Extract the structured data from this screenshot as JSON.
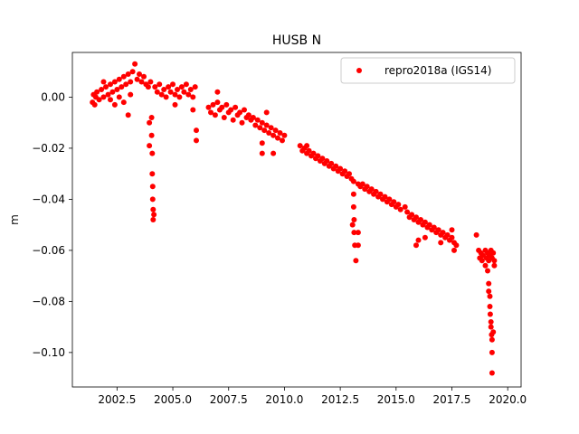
{
  "chart_data": {
    "type": "scatter",
    "title": "HUSB N",
    "xlabel": "",
    "ylabel": "m",
    "xlim": [
      2000.5,
      2020.6
    ],
    "ylim": [
      -0.1135,
      0.0175
    ],
    "xticks": [
      2002.5,
      2005.0,
      2007.5,
      2010.0,
      2012.5,
      2015.0,
      2017.5,
      2020.0
    ],
    "xtick_labels": [
      "2002.5",
      "2005.0",
      "2007.5",
      "2010.0",
      "2012.5",
      "2015.0",
      "2017.5",
      "2020.0"
    ],
    "yticks": [
      0.0,
      -0.02,
      -0.04,
      -0.06,
      -0.08,
      -0.1
    ],
    "ytick_labels": [
      "0.00",
      "−0.02",
      "−0.04",
      "−0.06",
      "−0.08",
      "−0.10"
    ],
    "legend_position": "top-right",
    "grid": false,
    "series": [
      {
        "name": "repro2018a (IGS14)",
        "color": "#ff0000",
        "marker": "circle",
        "points": [
          [
            2001.4,
            -0.002
          ],
          [
            2001.45,
            0.001
          ],
          [
            2001.5,
            -0.003
          ],
          [
            2001.55,
            0.0
          ],
          [
            2001.6,
            0.002
          ],
          [
            2001.7,
            -0.001
          ],
          [
            2001.8,
            0.003
          ],
          [
            2001.9,
            0.0
          ],
          [
            2002.0,
            0.004
          ],
          [
            2002.1,
            0.001
          ],
          [
            2002.2,
            0.005
          ],
          [
            2002.3,
            0.002
          ],
          [
            2002.4,
            0.006
          ],
          [
            2002.5,
            0.003
          ],
          [
            2002.6,
            0.007
          ],
          [
            2002.7,
            0.004
          ],
          [
            2002.8,
            0.008
          ],
          [
            2002.9,
            0.005
          ],
          [
            2003.0,
            0.009
          ],
          [
            2003.1,
            0.006
          ],
          [
            2003.2,
            0.01
          ],
          [
            2003.3,
            0.013
          ],
          [
            2003.4,
            0.007
          ],
          [
            2003.5,
            0.009
          ],
          [
            2003.6,
            0.006
          ],
          [
            2003.7,
            0.008
          ],
          [
            2003.8,
            0.005
          ],
          [
            2003.9,
            0.004
          ],
          [
            2002.8,
            -0.002
          ],
          [
            2003.0,
            -0.007
          ],
          [
            2003.1,
            0.001
          ],
          [
            2002.2,
            -0.001
          ],
          [
            2002.6,
            0.0
          ],
          [
            2001.9,
            0.006
          ],
          [
            2002.4,
            -0.003
          ],
          [
            2004.0,
            0.006
          ],
          [
            2004.05,
            -0.008
          ],
          [
            2004.05,
            -0.015
          ],
          [
            2004.08,
            -0.022
          ],
          [
            2004.08,
            -0.03
          ],
          [
            2004.1,
            -0.035
          ],
          [
            2004.1,
            -0.04
          ],
          [
            2004.12,
            -0.044
          ],
          [
            2004.12,
            -0.048
          ],
          [
            2004.15,
            -0.046
          ],
          [
            2003.95,
            -0.01
          ],
          [
            2003.95,
            -0.019
          ],
          [
            2004.2,
            0.004
          ],
          [
            2004.3,
            0.002
          ],
          [
            2004.4,
            0.005
          ],
          [
            2004.5,
            0.001
          ],
          [
            2004.6,
            0.003
          ],
          [
            2004.7,
            0.0
          ],
          [
            2004.8,
            0.004
          ],
          [
            2004.9,
            0.002
          ],
          [
            2005.0,
            0.005
          ],
          [
            2005.1,
            0.001
          ],
          [
            2005.2,
            0.003
          ],
          [
            2005.3,
            0.0
          ],
          [
            2005.4,
            0.004
          ],
          [
            2005.5,
            0.002
          ],
          [
            2005.6,
            0.005
          ],
          [
            2005.7,
            0.001
          ],
          [
            2005.8,
            0.003
          ],
          [
            2005.9,
            0.0
          ],
          [
            2006.0,
            0.004
          ],
          [
            2006.05,
            -0.013
          ],
          [
            2006.05,
            -0.017
          ],
          [
            2005.1,
            -0.003
          ],
          [
            2005.9,
            -0.005
          ],
          [
            2006.6,
            -0.004
          ],
          [
            2006.7,
            -0.006
          ],
          [
            2006.8,
            -0.003
          ],
          [
            2006.9,
            -0.007
          ],
          [
            2007.0,
            -0.002
          ],
          [
            2007.1,
            -0.005
          ],
          [
            2007.2,
            -0.004
          ],
          [
            2007.3,
            -0.008
          ],
          [
            2007.4,
            -0.003
          ],
          [
            2007.5,
            -0.006
          ],
          [
            2007.6,
            -0.005
          ],
          [
            2007.7,
            -0.009
          ],
          [
            2007.8,
            -0.004
          ],
          [
            2007.9,
            -0.007
          ],
          [
            2008.0,
            -0.006
          ],
          [
            2008.1,
            -0.01
          ],
          [
            2008.2,
            -0.005
          ],
          [
            2008.3,
            -0.008
          ],
          [
            2008.4,
            -0.007
          ],
          [
            2007.0,
            0.002
          ],
          [
            2008.5,
            -0.009
          ],
          [
            2008.6,
            -0.008
          ],
          [
            2008.7,
            -0.011
          ],
          [
            2008.8,
            -0.009
          ],
          [
            2008.9,
            -0.012
          ],
          [
            2009.0,
            -0.01
          ],
          [
            2009.1,
            -0.013
          ],
          [
            2009.2,
            -0.011
          ],
          [
            2009.3,
            -0.014
          ],
          [
            2009.4,
            -0.012
          ],
          [
            2009.5,
            -0.015
          ],
          [
            2009.6,
            -0.013
          ],
          [
            2009.7,
            -0.016
          ],
          [
            2009.8,
            -0.014
          ],
          [
            2009.9,
            -0.017
          ],
          [
            2010.0,
            -0.015
          ],
          [
            2009.0,
            -0.018
          ],
          [
            2009.0,
            -0.022
          ],
          [
            2009.5,
            -0.022
          ],
          [
            2009.2,
            -0.006
          ],
          [
            2010.7,
            -0.019
          ],
          [
            2010.8,
            -0.021
          ],
          [
            2010.9,
            -0.02
          ],
          [
            2011.0,
            -0.022
          ],
          [
            2011.1,
            -0.021
          ],
          [
            2011.2,
            -0.023
          ],
          [
            2011.3,
            -0.022
          ],
          [
            2011.4,
            -0.024
          ],
          [
            2011.5,
            -0.023
          ],
          [
            2011.6,
            -0.025
          ],
          [
            2011.7,
            -0.024
          ],
          [
            2011.8,
            -0.026
          ],
          [
            2011.9,
            -0.025
          ],
          [
            2012.0,
            -0.027
          ],
          [
            2012.1,
            -0.026
          ],
          [
            2012.2,
            -0.028
          ],
          [
            2012.3,
            -0.027
          ],
          [
            2012.4,
            -0.029
          ],
          [
            2012.5,
            -0.028
          ],
          [
            2012.6,
            -0.03
          ],
          [
            2012.7,
            -0.029
          ],
          [
            2012.8,
            -0.031
          ],
          [
            2012.9,
            -0.03
          ],
          [
            2013.0,
            -0.032
          ],
          [
            2011.0,
            -0.019
          ],
          [
            2013.1,
            -0.033
          ],
          [
            2013.1,
            -0.038
          ],
          [
            2013.1,
            -0.043
          ],
          [
            2013.12,
            -0.048
          ],
          [
            2013.12,
            -0.053
          ],
          [
            2013.15,
            -0.058
          ],
          [
            2013.2,
            -0.064
          ],
          [
            2013.05,
            -0.05
          ],
          [
            2013.3,
            -0.058
          ],
          [
            2013.3,
            -0.053
          ],
          [
            2013.3,
            -0.034
          ],
          [
            2013.4,
            -0.035
          ],
          [
            2013.5,
            -0.034
          ],
          [
            2013.6,
            -0.036
          ],
          [
            2013.7,
            -0.035
          ],
          [
            2013.8,
            -0.037
          ],
          [
            2013.9,
            -0.036
          ],
          [
            2014.0,
            -0.038
          ],
          [
            2014.1,
            -0.037
          ],
          [
            2014.2,
            -0.039
          ],
          [
            2014.3,
            -0.038
          ],
          [
            2014.4,
            -0.04
          ],
          [
            2014.5,
            -0.039
          ],
          [
            2014.6,
            -0.041
          ],
          [
            2014.7,
            -0.04
          ],
          [
            2014.8,
            -0.042
          ],
          [
            2014.9,
            -0.041
          ],
          [
            2015.0,
            -0.043
          ],
          [
            2015.1,
            -0.042
          ],
          [
            2015.2,
            -0.044
          ],
          [
            2015.4,
            -0.043
          ],
          [
            2015.5,
            -0.045
          ],
          [
            2015.6,
            -0.047
          ],
          [
            2015.7,
            -0.046
          ],
          [
            2015.8,
            -0.048
          ],
          [
            2015.9,
            -0.047
          ],
          [
            2016.0,
            -0.049
          ],
          [
            2016.1,
            -0.048
          ],
          [
            2016.2,
            -0.05
          ],
          [
            2016.3,
            -0.049
          ],
          [
            2016.4,
            -0.051
          ],
          [
            2016.5,
            -0.05
          ],
          [
            2016.6,
            -0.052
          ],
          [
            2016.7,
            -0.051
          ],
          [
            2016.8,
            -0.053
          ],
          [
            2016.9,
            -0.052
          ],
          [
            2017.0,
            -0.054
          ],
          [
            2017.1,
            -0.053
          ],
          [
            2017.2,
            -0.055
          ],
          [
            2017.3,
            -0.054
          ],
          [
            2017.4,
            -0.056
          ],
          [
            2017.5,
            -0.055
          ],
          [
            2017.6,
            -0.057
          ],
          [
            2017.7,
            -0.058
          ],
          [
            2015.9,
            -0.058
          ],
          [
            2016.0,
            -0.056
          ],
          [
            2017.0,
            -0.057
          ],
          [
            2017.6,
            -0.06
          ],
          [
            2017.5,
            -0.052
          ],
          [
            2016.3,
            -0.055
          ],
          [
            2018.6,
            -0.054
          ],
          [
            2018.7,
            -0.06
          ],
          [
            2018.75,
            -0.063
          ],
          [
            2018.8,
            -0.061
          ],
          [
            2018.85,
            -0.064
          ],
          [
            2018.9,
            -0.062
          ],
          [
            2019.0,
            -0.06
          ],
          [
            2019.05,
            -0.063
          ],
          [
            2019.1,
            -0.061
          ],
          [
            2019.15,
            -0.064
          ],
          [
            2019.2,
            -0.062
          ],
          [
            2019.25,
            -0.06
          ],
          [
            2019.3,
            -0.063
          ],
          [
            2019.35,
            -0.061
          ],
          [
            2019.4,
            -0.064
          ],
          [
            2019.0,
            -0.066
          ],
          [
            2019.1,
            -0.068
          ],
          [
            2019.15,
            -0.073
          ],
          [
            2019.15,
            -0.076
          ],
          [
            2019.2,
            -0.078
          ],
          [
            2019.2,
            -0.082
          ],
          [
            2019.22,
            -0.085
          ],
          [
            2019.25,
            -0.088
          ],
          [
            2019.25,
            -0.09
          ],
          [
            2019.28,
            -0.093
          ],
          [
            2019.3,
            -0.095
          ],
          [
            2019.3,
            -0.1
          ],
          [
            2019.3,
            -0.108
          ],
          [
            2019.35,
            -0.092
          ],
          [
            2019.4,
            -0.066
          ]
        ]
      }
    ]
  }
}
